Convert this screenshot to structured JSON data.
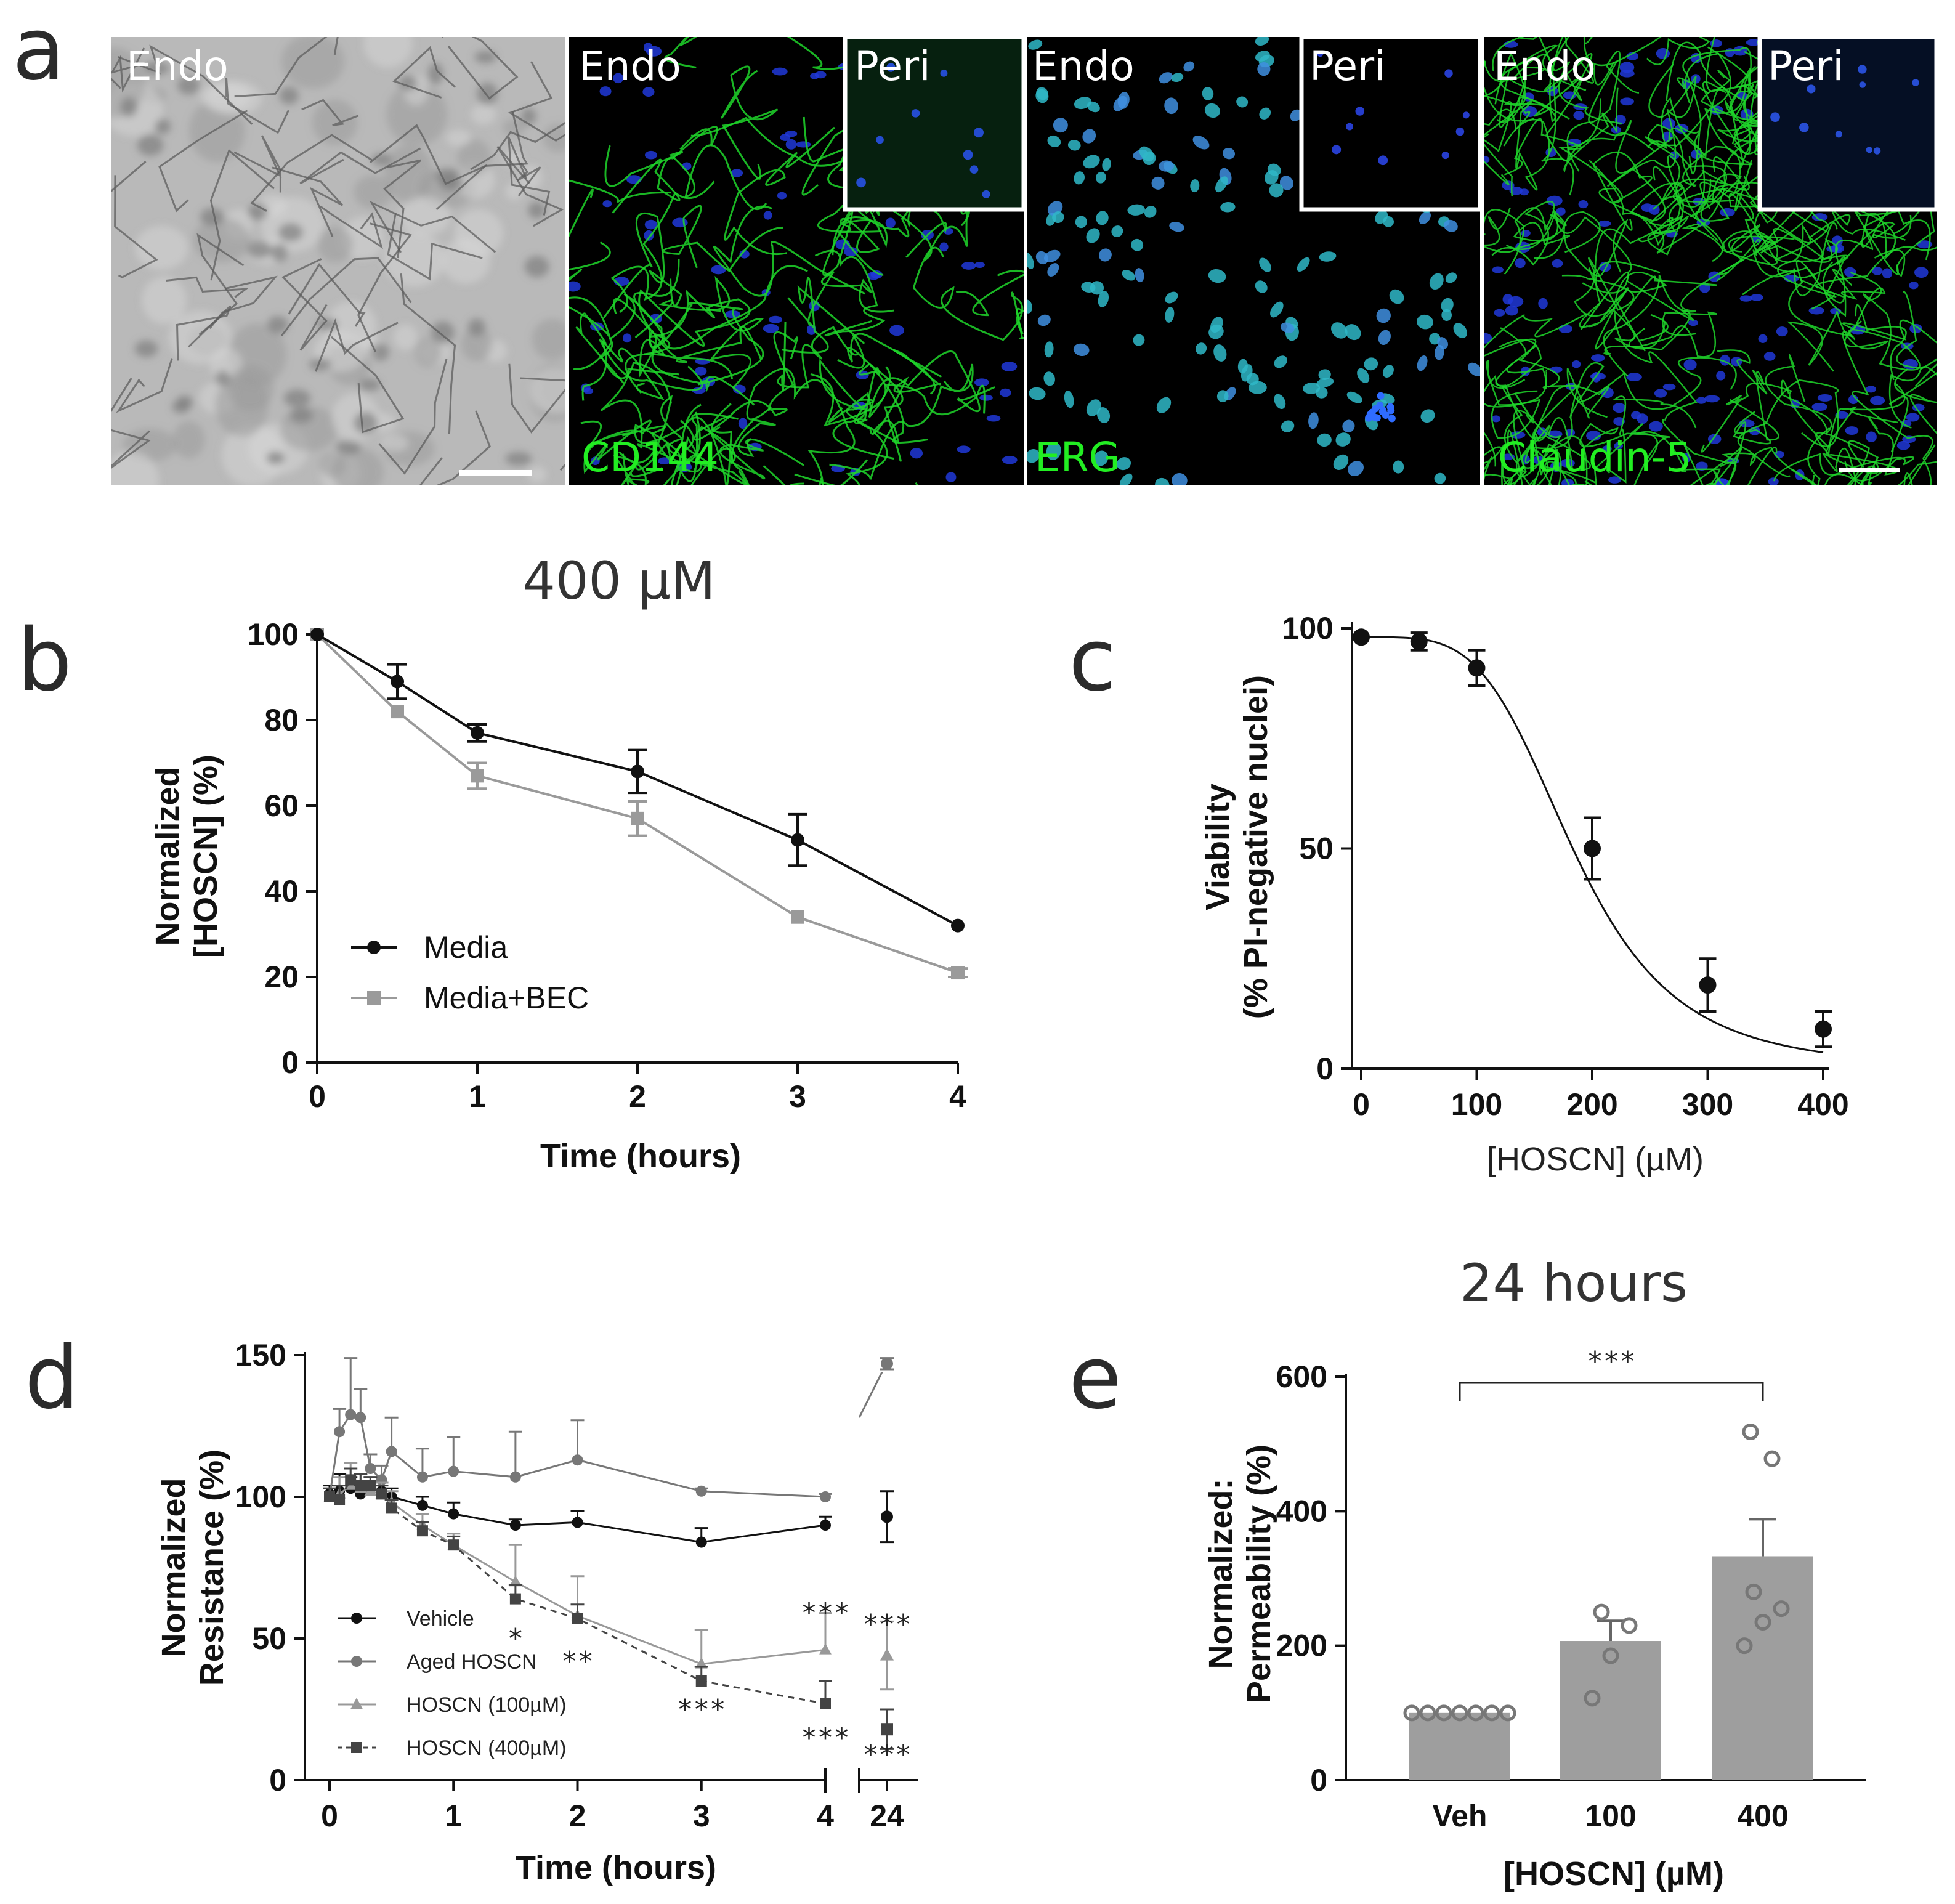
{
  "panel_labels": {
    "a": "a",
    "b": "b",
    "c": "c",
    "d": "d",
    "e": "e"
  },
  "panel_a": {
    "tiles": [
      {
        "label": "Endo",
        "inset": "",
        "stain": "",
        "kind": "phase"
      },
      {
        "label": "Endo",
        "inset": "Peri",
        "stain": "CD144",
        "kind": "fluor-junction"
      },
      {
        "label": "Endo",
        "inset": "Peri",
        "stain": "ERG",
        "kind": "fluor-nuclei"
      },
      {
        "label": "Endo",
        "inset": "Peri",
        "stain": "Claudin-5",
        "kind": "fluor-junction"
      }
    ],
    "colors": {
      "green": "#22ee22",
      "blue": "#2244ff",
      "cyan": "#33c8dd"
    }
  },
  "panel_b": {
    "title": "400 µM",
    "chart_data": {
      "type": "line",
      "title": "400 µM",
      "xlabel": "Time (hours)",
      "ylabel": [
        "Normalized",
        "[HOSCN] (%)"
      ],
      "xlim": [
        0,
        4
      ],
      "ylim": [
        0,
        100
      ],
      "xticks": [
        0,
        1,
        2,
        3,
        4
      ],
      "yticks": [
        0,
        20,
        40,
        60,
        80,
        100
      ],
      "legend_position": "bottom-left",
      "series": [
        {
          "name": "Media",
          "color": "#111111",
          "marker": "circle",
          "x": [
            0,
            0.5,
            1,
            2,
            3,
            4
          ],
          "y": [
            100,
            89,
            77,
            68,
            52,
            32
          ],
          "err": [
            0,
            4,
            2,
            5,
            6,
            0
          ]
        },
        {
          "name": "Media+BEC",
          "color": "#9a9a9a",
          "marker": "square",
          "x": [
            0,
            0.5,
            1,
            2,
            3,
            4
          ],
          "y": [
            100,
            82,
            67,
            57,
            34,
            21
          ],
          "err": [
            0,
            0,
            3,
            4,
            0,
            1
          ]
        }
      ]
    }
  },
  "panel_c": {
    "chart_data": {
      "type": "scatter",
      "fit": "sigmoidal dose-response",
      "xlabel": "[HOSCN] (µM)",
      "ylabel": [
        "Viability",
        "(% PI-negative nuclei)"
      ],
      "xlim": [
        0,
        400
      ],
      "ylim": [
        0,
        100
      ],
      "xticks": [
        0,
        100,
        200,
        300,
        400
      ],
      "yticks": [
        0,
        50,
        100
      ],
      "series": [
        {
          "name": "",
          "color": "#111111",
          "marker": "circle",
          "x": [
            0,
            50,
            100,
            200,
            300,
            400
          ],
          "y": [
            98,
            97,
            91,
            50,
            19,
            9
          ],
          "err": [
            0,
            2,
            4,
            7,
            6,
            4
          ]
        }
      ],
      "fit_params": {
        "top": 98,
        "ec50": 185,
        "hill": 4.2
      }
    }
  },
  "panel_d": {
    "chart_data": {
      "type": "line",
      "xlabel": "Time (hours)",
      "ylabel": [
        "Normalized",
        "Resistance (%)"
      ],
      "ylim": [
        0,
        150
      ],
      "xticks": [
        "0",
        "1",
        "2",
        "3",
        "4",
        "24"
      ],
      "yticks": [
        0,
        50,
        100,
        150
      ],
      "broken_x_axis": true,
      "legend_position": "bottom-left",
      "series": [
        {
          "name": "Vehicle",
          "color": "#111111",
          "marker": "circle",
          "style": "solid",
          "x": [
            0,
            0.08,
            0.17,
            0.25,
            0.33,
            0.42,
            0.5,
            0.75,
            1,
            1.5,
            2,
            3,
            4
          ],
          "y": [
            101,
            102,
            103,
            101,
            103,
            102,
            100,
            97,
            94,
            90,
            91,
            84,
            90
          ],
          "err": [
            3,
            6,
            4,
            3,
            4,
            3,
            3,
            3,
            4,
            2,
            4,
            5,
            3
          ],
          "y24": 93,
          "err24": 9
        },
        {
          "name": "Aged HOSCN",
          "color": "#777777",
          "marker": "circle",
          "style": "solid",
          "x": [
            0,
            0.08,
            0.17,
            0.25,
            0.33,
            0.42,
            0.5,
            0.75,
            1,
            1.5,
            2,
            3,
            4
          ],
          "y": [
            100,
            123,
            129,
            128,
            110,
            106,
            116,
            107,
            109,
            107,
            113,
            102,
            100
          ],
          "err": [
            3,
            8,
            20,
            10,
            5,
            5,
            12,
            10,
            12,
            16,
            14,
            1,
            1
          ],
          "y24": 147,
          "err24": 2
        },
        {
          "name": "HOSCN (100µM)",
          "color": "#999999",
          "marker": "triangle",
          "style": "solid",
          "x": [
            0,
            0.08,
            0.17,
            0.25,
            0.33,
            0.42,
            0.5,
            0.75,
            1,
            1.5,
            2,
            3,
            4
          ],
          "y": [
            100,
            101,
            104,
            103,
            102,
            101,
            98,
            90,
            83,
            70,
            58,
            41,
            46
          ],
          "err": [
            3,
            6,
            8,
            5,
            5,
            4,
            4,
            4,
            4,
            13,
            14,
            12,
            13
          ],
          "y24": 44,
          "err24": 12
        },
        {
          "name": "HOSCN (400µM)",
          "color": "#444444",
          "marker": "square",
          "style": "dashed",
          "x": [
            0,
            0.08,
            0.17,
            0.25,
            0.33,
            0.42,
            0.5,
            0.75,
            1,
            1.5,
            2,
            3,
            4
          ],
          "y": [
            100,
            99,
            106,
            104,
            104,
            101,
            96,
            88,
            83,
            64,
            57,
            35,
            27
          ],
          "err": [
            3,
            5,
            4,
            4,
            3,
            3,
            3,
            3,
            3,
            5,
            5,
            5,
            8
          ],
          "y24": 18,
          "err24": 7
        }
      ],
      "annotations": [
        {
          "x": 1.5,
          "y": 50,
          "text": "*"
        },
        {
          "x": 2,
          "y": 42,
          "text": "**"
        },
        {
          "x": 3,
          "y": 25,
          "text": "***"
        },
        {
          "x": 4,
          "y": 59,
          "text": "***"
        },
        {
          "x": 4,
          "y": 15,
          "text": "***"
        },
        {
          "x": 24,
          "y": 55,
          "text": "***"
        },
        {
          "x": 24,
          "y": 9,
          "text": "***"
        }
      ]
    }
  },
  "panel_e": {
    "title": "24 hours",
    "chart_data": {
      "type": "bar",
      "title": "24 hours",
      "xlabel": "[HOSCN] (µM)",
      "ylabel": [
        "Normalized:",
        "Permeability (%)"
      ],
      "categories": [
        "Veh",
        "100",
        "400"
      ],
      "values": [
        100,
        207,
        333
      ],
      "errors": [
        0,
        30,
        55
      ],
      "points": [
        [
          100,
          100,
          100,
          100,
          100,
          100,
          100
        ],
        [
          122,
          185,
          230,
          250
        ],
        [
          200,
          235,
          255,
          280,
          478,
          518
        ]
      ],
      "ylim": [
        0,
        600
      ],
      "yticks": [
        0,
        200,
        400,
        600
      ],
      "bar_color": "#9e9e9e",
      "significance": {
        "from": "Veh",
        "to": "400",
        "text": "***"
      }
    }
  }
}
